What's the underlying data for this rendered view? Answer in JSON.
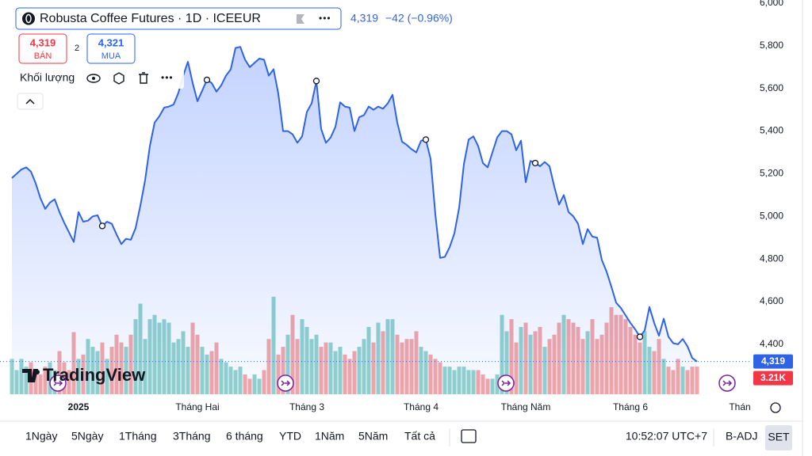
{
  "header": {
    "symbol": "Robusta Coffee Futures · 1D · ICEEUR",
    "quote": "4,319",
    "change": "−42 (−0.96%)",
    "sell_price": "4,319",
    "sell_label": "BÁN",
    "spread": "2",
    "buy_price": "4,321",
    "buy_label": "MUA",
    "volume_label": "Khối lượng",
    "logo": "TradingView"
  },
  "chart_data": {
    "type": "line",
    "categories": [
      null,
      null,
      null,
      null,
      null,
      null,
      null,
      null,
      null,
      null,
      null,
      null,
      null,
      null,
      "2025",
      null,
      null,
      null,
      null,
      null,
      null,
      null,
      null,
      null,
      null,
      null,
      null,
      null,
      null,
      null,
      null,
      null,
      null,
      null,
      null,
      null,
      null,
      null,
      null,
      "Tháng Hai",
      null,
      null,
      null,
      null,
      null,
      null,
      null,
      null,
      null,
      null,
      null,
      null,
      null,
      null,
      null,
      null,
      null,
      null,
      null,
      null,
      null,
      null,
      "Tháng 3",
      null,
      null,
      null,
      null,
      null,
      null,
      null,
      null,
      null,
      null,
      null,
      null,
      null,
      null,
      null,
      null,
      null,
      null,
      null,
      null,
      null,
      null,
      null,
      "Tháng 4",
      null,
      null,
      null,
      null,
      null,
      null,
      null,
      null,
      null,
      null,
      null,
      null,
      null,
      null,
      null,
      null,
      null,
      null,
      null,
      null,
      null,
      "Tháng Năm",
      null,
      null,
      null,
      null,
      null,
      null,
      null,
      null,
      null,
      null,
      null,
      null,
      null,
      null,
      null,
      null,
      null,
      null,
      null,
      null,
      null,
      "Tháng 6",
      null,
      null,
      null,
      null,
      null,
      null,
      null,
      null,
      null,
      null,
      null,
      null,
      null,
      null,
      null,
      null,
      null,
      null,
      null,
      null,
      null,
      null,
      "Thán"
    ],
    "series": [
      {
        "color": "#2f63e6",
        "last_value_label": "4,319",
        "values": [
          5180,
          5200,
          5220,
          5230,
          5210,
          5155,
          5085,
          5035,
          5065,
          5080,
          5020,
          4970,
          4925,
          4880,
          5020,
          4975,
          4980,
          5000,
          5005,
          4955,
          4975,
          4965,
          4915,
          4870,
          4895,
          4890,
          4945,
          5050,
          5170,
          5330,
          5440,
          5470,
          5510,
          5515,
          5525,
          5580,
          5660,
          5725,
          5625,
          5540,
          5590,
          5640,
          5625,
          5585,
          5615,
          5660,
          5690,
          5790,
          5795,
          5735,
          5700,
          5720,
          5740,
          5735,
          5660,
          5690,
          5575,
          5400,
          5400,
          5385,
          5345,
          5375,
          5490,
          5530,
          5635,
          5410,
          5345,
          5370,
          5420,
          5535,
          5515,
          5510,
          5400,
          5465,
          5475,
          5515,
          5500,
          5515,
          5505,
          5530,
          5570,
          5440,
          5350,
          5335,
          5315,
          5300,
          5355,
          5360,
          5270,
          5010,
          4805,
          4810,
          4855,
          4920,
          5040,
          5245,
          5360,
          5375,
          5330,
          5250,
          5230,
          5300,
          5370,
          5400,
          5400,
          5385,
          5310,
          5355,
          5160,
          5260,
          5250,
          5235,
          5255,
          5235,
          5140,
          5055,
          5100,
          5020,
          5000,
          4965,
          4870,
          4940,
          4905,
          4900,
          4795,
          4740,
          4670,
          4595,
          4570,
          4535,
          4500,
          4470,
          4435,
          4465,
          4575,
          4500,
          4440,
          4520,
          4435,
          4405,
          4400,
          4425,
          4390,
          4335,
          4319,
          null,
          null,
          null,
          null,
          null,
          null,
          null,
          null,
          null
        ]
      }
    ],
    "volume": {
      "up_color": "#92d3cc",
      "down_color": "#f5a7a6",
      "last_value_label": "3.21K",
      "values": [
        4.1,
        2.8,
        4.1,
        3.2,
        3.7,
        2.8,
        2.3,
        3.2,
        3.7,
        2.8,
        5.0,
        3.7,
        2.8,
        7.2,
        4.1,
        4.6,
        6.4,
        5.5,
        5.0,
        6.0,
        4.1,
        5.5,
        6.9,
        6.0,
        5.5,
        6.9,
        8.7,
        10.5,
        6.4,
        8.7,
        9.2,
        8.3,
        8.7,
        8.3,
        6.0,
        6.4,
        7.3,
        5.5,
        8.3,
        6.9,
        5.5,
        4.6,
        5.0,
        6.0,
        4.1,
        3.7,
        3.2,
        2.8,
        3.2,
        2.3,
        1.8,
        2.3,
        1.8,
        2.8,
        6.4,
        11.3,
        4.6,
        5.5,
        6.9,
        9.2,
        6.4,
        8.7,
        7.8,
        6.4,
        6.9,
        5.5,
        6.0,
        6.0,
        5.0,
        5.5,
        4.6,
        4.1,
        5.0,
        5.5,
        6.4,
        7.8,
        6.0,
        8.3,
        7.3,
        8.7,
        8.7,
        6.9,
        6.0,
        6.4,
        6.4,
        7.3,
        5.5,
        5.0,
        4.6,
        4.1,
        3.7,
        3.2,
        3.2,
        2.8,
        3.2,
        3.2,
        2.8,
        2.8,
        2.8,
        2.3,
        1.8,
        1.8,
        2.3,
        9.2,
        7.3,
        8.7,
        6.0,
        7.8,
        8.3,
        6.9,
        7.3,
        7.8,
        5.5,
        6.4,
        6.9,
        8.3,
        9.2,
        8.7,
        8.3,
        7.8,
        6.4,
        7.3,
        8.7,
        6.4,
        6.9,
        8.3,
        10.1,
        9.2,
        9.2,
        8.7,
        7.8,
        6.9,
        6.0,
        7.3,
        5.5,
        5.0,
        6.4,
        4.1,
        3.2,
        2.8,
        4.1,
        3.2,
        2.8,
        3.2,
        3.21,
        null,
        null,
        null,
        null,
        null,
        null,
        null,
        null,
        null
      ]
    },
    "ylim": [
      4160,
      6000
    ],
    "yticks": [
      {
        "value": 4400,
        "label": "4,400"
      },
      {
        "value": 4600,
        "label": "4,600"
      },
      {
        "value": 4800,
        "label": "4,800"
      },
      {
        "value": 5000,
        "label": "5,000"
      },
      {
        "value": 5200,
        "label": "5,200"
      },
      {
        "value": 5400,
        "label": "5,400"
      },
      {
        "value": 5600,
        "label": "5,600"
      },
      {
        "value": 5800,
        "label": "5,800"
      },
      {
        "value": 6000,
        "label": "6,000"
      }
    ]
  },
  "toolbar": {
    "ranges": [
      "1Ngày",
      "5Ngày",
      "1Tháng",
      "3Tháng",
      "6 tháng",
      "YTD",
      "1Năm",
      "5Năm",
      "Tất cả"
    ],
    "time": "10:52:07 UTC+7",
    "adjust": "B-ADJ",
    "session": "SET"
  }
}
